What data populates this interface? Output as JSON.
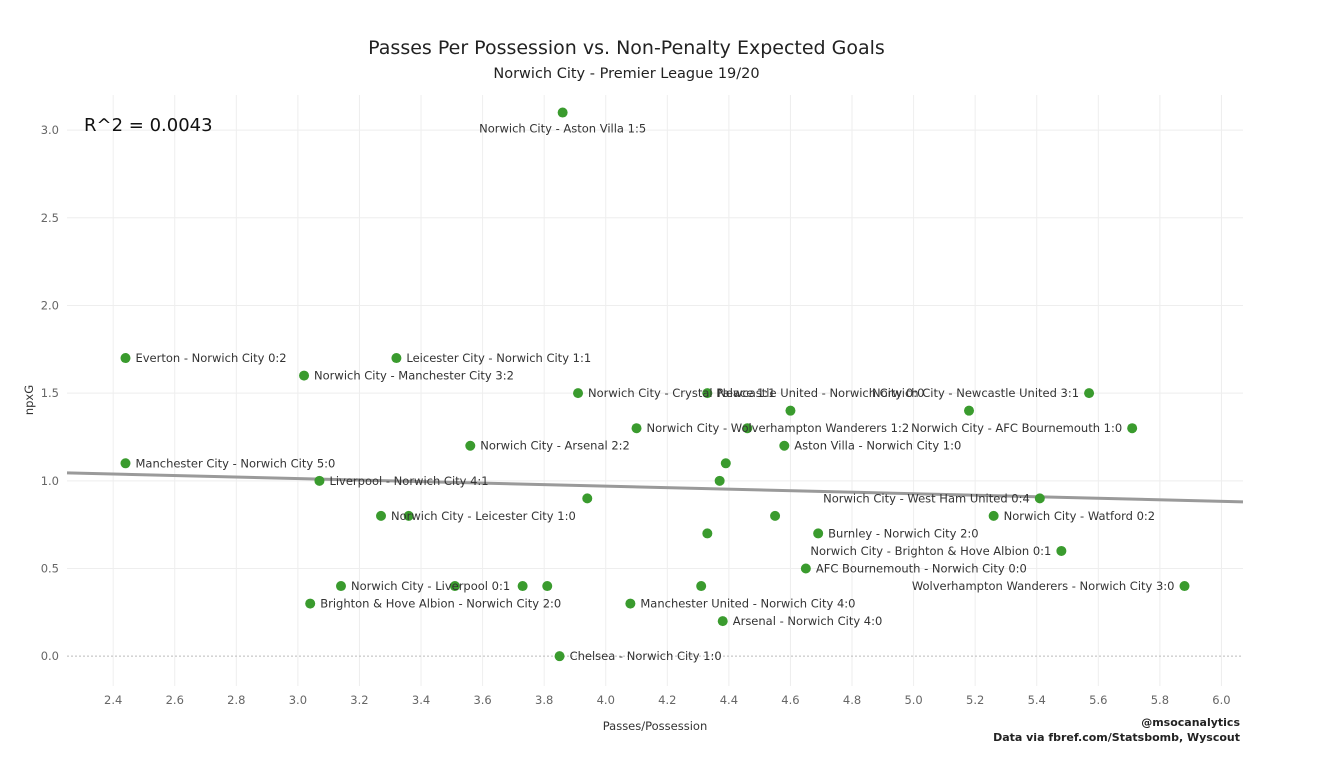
{
  "chart_data": {
    "type": "scatter",
    "title": "Passes Per Possession vs. Non-Penalty Expected Goals",
    "subtitle": "Norwich City - Premier League 19/20",
    "annotation": "R^2 = 0.0043",
    "xlabel": "Passes/Possession",
    "ylabel": "npxG",
    "xlim": [
      2.25,
      6.07
    ],
    "ylim": [
      -0.17,
      3.2
    ],
    "x_ticks": [
      "2.4",
      "2.6",
      "2.8",
      "3.0",
      "3.2",
      "3.4",
      "3.6",
      "3.8",
      "4.0",
      "4.2",
      "4.4",
      "4.6",
      "4.8",
      "5.0",
      "5.2",
      "5.4",
      "5.6",
      "5.8",
      "6.0"
    ],
    "y_ticks": [
      "0.0",
      "0.5",
      "1.0",
      "1.5",
      "2.0",
      "2.5",
      "3.0"
    ],
    "grid": true,
    "point_color": "#3a9b2e",
    "trend_color": "#9a9a9a",
    "trend_line": {
      "x": [
        2.25,
        6.07
      ],
      "y": [
        1.045,
        0.88
      ]
    },
    "points": [
      {
        "x": 3.86,
        "y": 3.1,
        "label": "Norwich City - Aston Villa 1:5"
      },
      {
        "x": 2.44,
        "y": 1.7,
        "label": "Everton - Norwich City 0:2"
      },
      {
        "x": 3.02,
        "y": 1.6,
        "label": "Norwich City - Manchester City 3:2"
      },
      {
        "x": 3.32,
        "y": 1.7,
        "label": "Leicester City - Norwich City 1:1"
      },
      {
        "x": 3.91,
        "y": 1.5,
        "label": "Norwich City - Crystal Palace 1:1"
      },
      {
        "x": 4.33,
        "y": 1.5,
        "label": "Newcastle United - Norwich City 0:0"
      },
      {
        "x": 4.1,
        "y": 1.3,
        "label": "Norwich City - Wolverhampton Wanderers 1:2"
      },
      {
        "x": 4.6,
        "y": 1.4,
        "label": ""
      },
      {
        "x": 4.46,
        "y": 1.3,
        "label": ""
      },
      {
        "x": 4.58,
        "y": 1.2,
        "label": "Aston Villa - Norwich City 1:0"
      },
      {
        "x": 5.18,
        "y": 1.4,
        "label": ""
      },
      {
        "x": 5.57,
        "y": 1.5,
        "label": "Norwich City - Newcastle United 3:1"
      },
      {
        "x": 5.71,
        "y": 1.3,
        "label": "Norwich City - AFC Bournemouth 1:0"
      },
      {
        "x": 3.56,
        "y": 1.2,
        "label": "Norwich City - Arsenal 2:2"
      },
      {
        "x": 2.44,
        "y": 1.1,
        "label": "Manchester City - Norwich City 5:0"
      },
      {
        "x": 4.39,
        "y": 1.1,
        "label": ""
      },
      {
        "x": 3.07,
        "y": 1.0,
        "label": "Liverpool - Norwich City 4:1"
      },
      {
        "x": 4.37,
        "y": 1.0,
        "label": ""
      },
      {
        "x": 3.94,
        "y": 0.9,
        "label": ""
      },
      {
        "x": 5.41,
        "y": 0.9,
        "label": "Norwich City - West Ham United 0:4"
      },
      {
        "x": 3.27,
        "y": 0.8,
        "label": "Norwich City - Leicester City 1:0"
      },
      {
        "x": 3.36,
        "y": 0.8,
        "label": ""
      },
      {
        "x": 4.55,
        "y": 0.8,
        "label": ""
      },
      {
        "x": 5.26,
        "y": 0.8,
        "label": "Norwich City - Watford 0:2"
      },
      {
        "x": 4.33,
        "y": 0.7,
        "label": ""
      },
      {
        "x": 4.69,
        "y": 0.7,
        "label": "Burnley - Norwich City 2:0"
      },
      {
        "x": 5.48,
        "y": 0.6,
        "label": "Norwich City - Brighton & Hove Albion 0:1"
      },
      {
        "x": 4.65,
        "y": 0.5,
        "label": "AFC Bournemouth - Norwich City 0:0"
      },
      {
        "x": 3.14,
        "y": 0.4,
        "label": "Norwich City - Liverpool 0:1"
      },
      {
        "x": 3.51,
        "y": 0.4,
        "label": ""
      },
      {
        "x": 3.73,
        "y": 0.4,
        "label": ""
      },
      {
        "x": 3.81,
        "y": 0.4,
        "label": ""
      },
      {
        "x": 4.31,
        "y": 0.4,
        "label": ""
      },
      {
        "x": 5.88,
        "y": 0.4,
        "label": "Wolverhampton Wanderers - Norwich City 3:0"
      },
      {
        "x": 3.04,
        "y": 0.3,
        "label": "Brighton & Hove Albion - Norwich City 2:0"
      },
      {
        "x": 4.08,
        "y": 0.3,
        "label": "Manchester United - Norwich City 4:0"
      },
      {
        "x": 4.38,
        "y": 0.2,
        "label": "Arsenal - Norwich City 4:0"
      },
      {
        "x": 3.85,
        "y": 0.0,
        "label": "Chelsea - Norwich City 1:0"
      }
    ]
  },
  "credits": {
    "line1": "@msocanalytics",
    "line2": "Data via fbref.com/Statsbomb, Wyscout"
  }
}
